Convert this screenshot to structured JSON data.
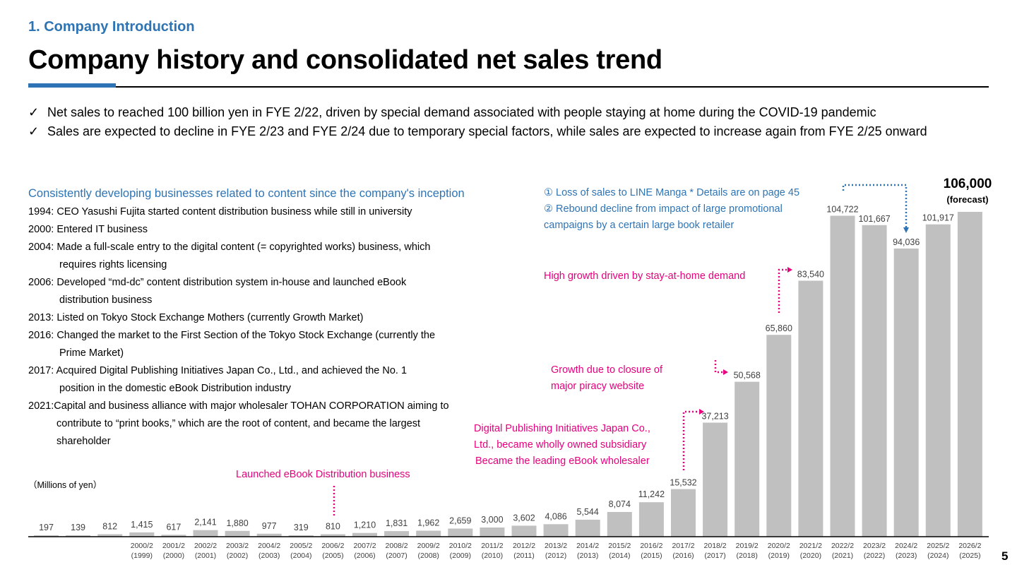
{
  "header": {
    "section": "1. Company Introduction",
    "title": "Company history and consolidated net sales trend"
  },
  "bullets": [
    {
      "check": "✓",
      "text": "Net sales to reached 100 billion yen in FYE 2/22, driven by special demand associated with people staying at home during the COVID-19 pandemic"
    },
    {
      "check": "✓",
      "text": "Sales are expected to decline in FYE 2/23 and FYE 2/24 due to temporary special factors, while sales are expected to increase again from FYE 2/25 onward"
    }
  ],
  "history": {
    "title": "Consistently developing businesses related to content since the company's inception",
    "items": [
      {
        "first": "1994: CEO Yasushi Fujita started content distribution business while still in university",
        "rest": ""
      },
      {
        "first": "2000: Entered IT business",
        "rest": ""
      },
      {
        "first": "2004: Made a full-scale entry to the digital content (= copyrighted works) business, which",
        "rest": "requires rights licensing"
      },
      {
        "first": "2006: Developed “md-dc” content distribution system in-house and launched eBook",
        "rest": "distribution business"
      },
      {
        "first": "2013: Listed on Tokyo Stock Exchange Mothers (currently Growth Market)",
        "rest": ""
      },
      {
        "first": "2016: Changed the market to the First Section of the Tokyo Stock Exchange (currently the",
        "rest": "Prime Market)"
      },
      {
        "first": "2017: Acquired Digital Publishing Initiatives Japan Co., Ltd., and achieved the No. 1",
        "rest": "position in the domestic eBook Distribution industry"
      },
      {
        "first": "2021:Capital and business alliance with major wholesaler TOHAN CORPORATION aiming to",
        "rest": "contribute to “print books,” which are the root of content, and became the largest shareholder"
      }
    ]
  },
  "annotations": {
    "line_manga_1": "① Loss of sales to LINE Manga * Details are on page 45",
    "rebound_2": "② Rebound decline from impact of large promotional",
    "rebound_2b": "campaigns by a certain large book retailer",
    "stay_home": "High growth driven by stay-at-home demand",
    "piracy_1": "Growth due to closure of",
    "piracy_2": "major piracy website",
    "dpij_1": "Digital Publishing Initiatives Japan Co.,",
    "dpij_2": "Ltd., became wholly owned subsidiary",
    "dpij_3": "Became the leading eBook wholesaler",
    "ebook_launch": "Launched eBook Distribution business"
  },
  "forecast": {
    "value": "106,000",
    "label": "(forecast)"
  },
  "unit_label": "（Millions of yen）",
  "page_number": "5",
  "colors": {
    "accent_blue": "#2e74b5",
    "highlight_pink": "#e6007e",
    "bar_gray": "#c0c0c0"
  },
  "chart_data": {
    "type": "bar",
    "title": "",
    "xlabel": "",
    "ylabel": "",
    "unit": "Millions of yen",
    "categories": [
      "",
      "",
      "",
      "2000/2",
      "2001/2",
      "2002/2",
      "2003/2",
      "2004/2",
      "2005/2",
      "2006/2",
      "2007/2",
      "2008/2",
      "2009/2",
      "2010/2",
      "2011/2",
      "2012/2",
      "2013/2",
      "2014/2",
      "2015/2",
      "2016/2",
      "2017/2",
      "2018/2",
      "2019/2",
      "2020/2",
      "2021/2",
      "2022/2",
      "2023/2",
      "2024/2",
      "2025/2",
      "2026/2"
    ],
    "sub_categories": [
      "",
      "",
      "",
      "(1999)",
      "(2000)",
      "(2001)",
      "(2002)",
      "(2003)",
      "(2004)",
      "(2005)",
      "(2006)",
      "(2007)",
      "(2008)",
      "(2009)",
      "(2010)",
      "(2011)",
      "(2012)",
      "(2013)",
      "(2014)",
      "(2015)",
      "(2016)",
      "(2017)",
      "(2018)",
      "(2019)",
      "(2020)",
      "(2021)",
      "(2022)",
      "(2023)",
      "(2024)",
      "(2025)"
    ],
    "values": [
      197,
      139,
      812,
      1415,
      617,
      2141,
      1880,
      977,
      319,
      810,
      1210,
      1831,
      1962,
      2659,
      3000,
      3602,
      4086,
      5544,
      8074,
      11242,
      15532,
      37213,
      50568,
      65860,
      83540,
      104722,
      101667,
      94036,
      101917,
      106000
    ],
    "value_labels": [
      "197",
      "139",
      "812",
      "1,415",
      "617",
      "2,141",
      "1,880",
      "977",
      "319",
      "810",
      "1,210",
      "1,831",
      "1,962",
      "2,659",
      "3,000",
      "3,602",
      "4,086",
      "5,544",
      "8,074",
      "11,242",
      "15,532",
      "37,213",
      "50,568",
      "65,860",
      "83,540",
      "104,722",
      "101,667",
      "94,036",
      "101,917",
      ""
    ],
    "forecast_index": 29,
    "ylim": [
      0,
      106000
    ],
    "grid": false,
    "legend": "none"
  }
}
